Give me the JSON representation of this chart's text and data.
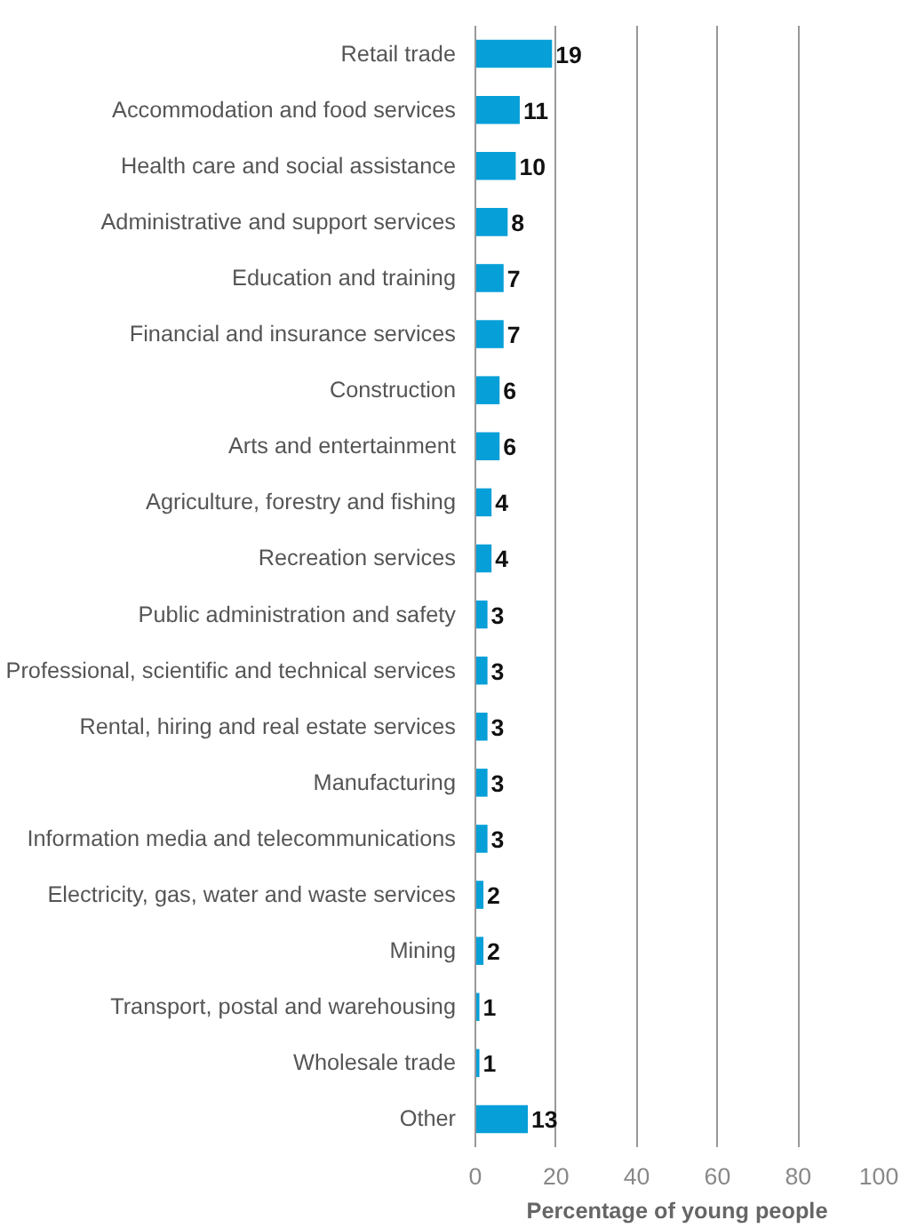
{
  "chart_data": {
    "type": "bar",
    "orientation": "horizontal",
    "xlabel": "Percentage of young people",
    "categories": [
      "Retail trade",
      "Accommodation and food services",
      "Health care and social assistance",
      "Administrative and support services",
      "Education and training",
      "Financial and insurance services",
      "Construction",
      "Arts and entertainment",
      "Agriculture, forestry and fishing",
      "Recreation services",
      "Public administration and safety",
      "Professional, scientific and technical services",
      "Rental, hiring and real estate services",
      "Manufacturing",
      "Information media and telecommunications",
      "Electricity, gas, water and waste services",
      "Mining",
      "Transport, postal and warehousing",
      "Wholesale trade",
      "Other"
    ],
    "values": [
      19,
      11,
      10,
      8,
      7,
      7,
      6,
      6,
      4,
      4,
      3,
      3,
      3,
      3,
      3,
      2,
      2,
      1,
      1,
      13
    ],
    "color": "#069fd8",
    "data_labels": true,
    "xlim": [
      0,
      100
    ],
    "xticks": [
      0,
      20,
      40,
      60,
      80,
      100
    ],
    "grid": "x"
  }
}
